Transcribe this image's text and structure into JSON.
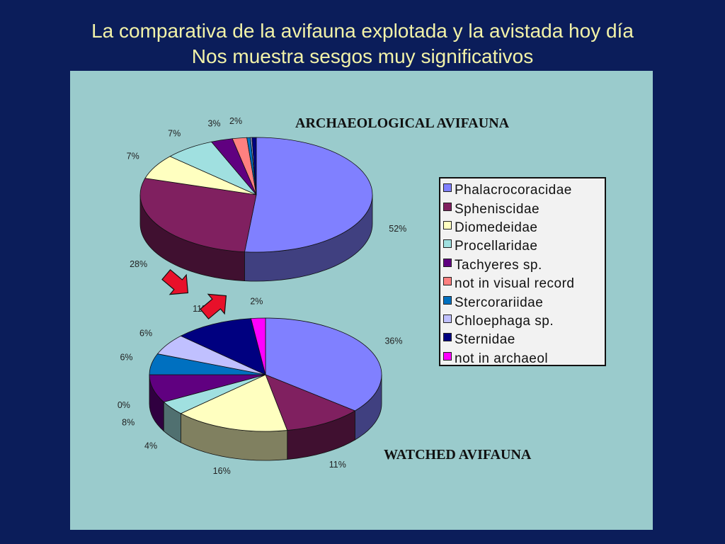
{
  "slide": {
    "title_line1": "La comparativa de la avifauna explotada y la avistada hoy día",
    "title_line2": "Nos muestra sesgos muy significativos"
  },
  "legend": {
    "items": [
      {
        "label": "Phalacrocoracidae",
        "color": "#8080ff"
      },
      {
        "label": "Spheniscidae",
        "color": "#802060"
      },
      {
        "label": "Diomedeidae",
        "color": "#ffffc0"
      },
      {
        "label": "Procellaridae",
        "color": "#a0e0e0"
      },
      {
        "label": "Tachyeres sp.",
        "color": "#600080"
      },
      {
        "label": "not in visual record",
        "color": "#ff8080"
      },
      {
        "label": "Stercorariidae",
        "color": "#0070c0"
      },
      {
        "label": "Chloephaga sp.",
        "color": "#c0c0ff"
      },
      {
        "label": "Sternidae",
        "color": "#000080"
      },
      {
        "label": "not in archaeol",
        "color": "#ff00ff"
      }
    ]
  },
  "chart_data": [
    {
      "type": "pie",
      "title": "ARCHAEOLOGICAL AVIFAUNA",
      "style": "3d",
      "categories": [
        "Phalacrocoracidae",
        "Spheniscidae",
        "Diomedeidae",
        "Procellaridae",
        "Tachyeres sp.",
        "not in visual record",
        "Stercorariidae",
        "Chloephaga sp.",
        "Sternidae",
        "not in archaeol"
      ],
      "values": [
        51.5,
        28,
        7,
        7,
        3,
        2,
        0.5,
        0.2,
        0.6,
        0
      ],
      "labels": [
        "52%",
        "28%",
        "7%",
        "7%",
        "3%",
        "2%",
        "",
        "",
        "",
        ""
      ],
      "colors": [
        "#8080ff",
        "#802060",
        "#ffffc0",
        "#a0e0e0",
        "#600080",
        "#ff8080",
        "#0070c0",
        "#c0c0ff",
        "#000080",
        "#ff00ff"
      ]
    },
    {
      "type": "pie",
      "title": "WATCHED AVIFAUNA",
      "style": "3d",
      "categories": [
        "Phalacrocoracidae",
        "Spheniscidae",
        "Diomedeidae",
        "Procellaridae",
        "Tachyeres sp.",
        "not in visual record",
        "Stercorariidae",
        "Chloephaga sp.",
        "Sternidae",
        "not in archaeol"
      ],
      "values": [
        36,
        11,
        16,
        4,
        8,
        0,
        6,
        6,
        11,
        2
      ],
      "labels": [
        "36%",
        "11%",
        "16%",
        "4%",
        "8%",
        "0%",
        "6%",
        "6%",
        "11%",
        "2%"
      ],
      "colors": [
        "#8080ff",
        "#802060",
        "#ffffc0",
        "#a0e0e0",
        "#600080",
        "#ff8080",
        "#0070c0",
        "#c0c0ff",
        "#000080",
        "#ff00ff"
      ]
    }
  ]
}
